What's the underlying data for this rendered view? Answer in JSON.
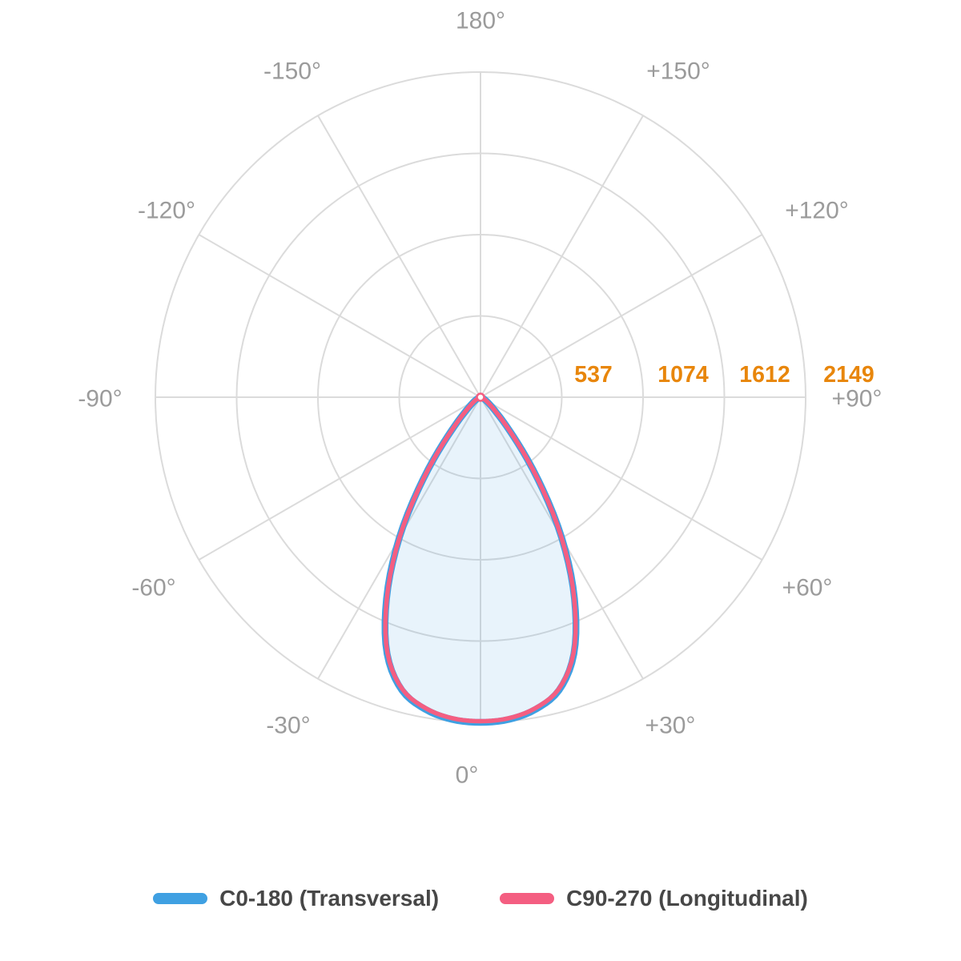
{
  "chart_data": {
    "type": "line",
    "subtype": "polar-photometric-distribution",
    "grid": {
      "rings": 4,
      "spoke_step_deg": 30,
      "grid_color": "#DBDBDB",
      "angle_label_color": "#9B9B9B"
    },
    "radial_axis": {
      "ticks": [
        537,
        1074,
        1612,
        2149
      ],
      "max": 2149,
      "tick_color": "#E8860B"
    },
    "angular_axis": {
      "labels": [
        {
          "angle": 180,
          "text": "180°"
        },
        {
          "angle": -150,
          "text": "-150°"
        },
        {
          "angle": 150,
          "text": "+150°"
        },
        {
          "angle": -120,
          "text": "-120°"
        },
        {
          "angle": 120,
          "text": "+120°"
        },
        {
          "angle": -90,
          "text": "-90°"
        },
        {
          "angle": 90,
          "text": "+90°"
        },
        {
          "angle": -60,
          "text": "-60°"
        },
        {
          "angle": 60,
          "text": "+60°"
        },
        {
          "angle": -30,
          "text": "-30°"
        },
        {
          "angle": 30,
          "text": "+30°"
        },
        {
          "angle": 0,
          "text": "0°"
        }
      ]
    },
    "x_angles_deg": [
      -90,
      -85,
      -80,
      -75,
      -70,
      -65,
      -60,
      -55,
      -50,
      -45,
      -40,
      -35,
      -30,
      -25,
      -20,
      -15,
      -10,
      -5,
      0,
      5,
      10,
      15,
      20,
      25,
      30,
      35,
      40,
      45,
      50,
      55,
      60,
      65,
      70,
      75,
      80,
      85,
      90
    ],
    "series": [
      {
        "name": "C0-180 (Transversal)",
        "color": "#3FA0E2",
        "fill_color": "rgba(63,160,226,0.12)",
        "values": [
          0,
          1,
          3,
          7,
          13,
          22,
          36,
          58,
          95,
          170,
          340,
          660,
          1074,
          1470,
          1805,
          2005,
          2095,
          2138,
          2149,
          2138,
          2095,
          2005,
          1805,
          1470,
          1074,
          660,
          340,
          170,
          95,
          58,
          36,
          22,
          13,
          7,
          3,
          1,
          0
        ]
      },
      {
        "name": "C90-270 (Longitudinal)",
        "color": "#F45E81",
        "fill_color": "none",
        "values": [
          0,
          1,
          3,
          7,
          13,
          22,
          36,
          58,
          94,
          169,
          338,
          657,
          1070,
          1464,
          1798,
          1997,
          2087,
          2130,
          2141,
          2130,
          2087,
          1997,
          1798,
          1464,
          1070,
          657,
          338,
          169,
          94,
          58,
          36,
          22,
          13,
          7,
          3,
          1,
          0
        ]
      }
    ]
  },
  "legend": {
    "items": [
      {
        "label": "C0-180 (Transversal)",
        "color": "#3FA0E2"
      },
      {
        "label": "C90-270 (Longitudinal)",
        "color": "#F45E81"
      }
    ]
  }
}
